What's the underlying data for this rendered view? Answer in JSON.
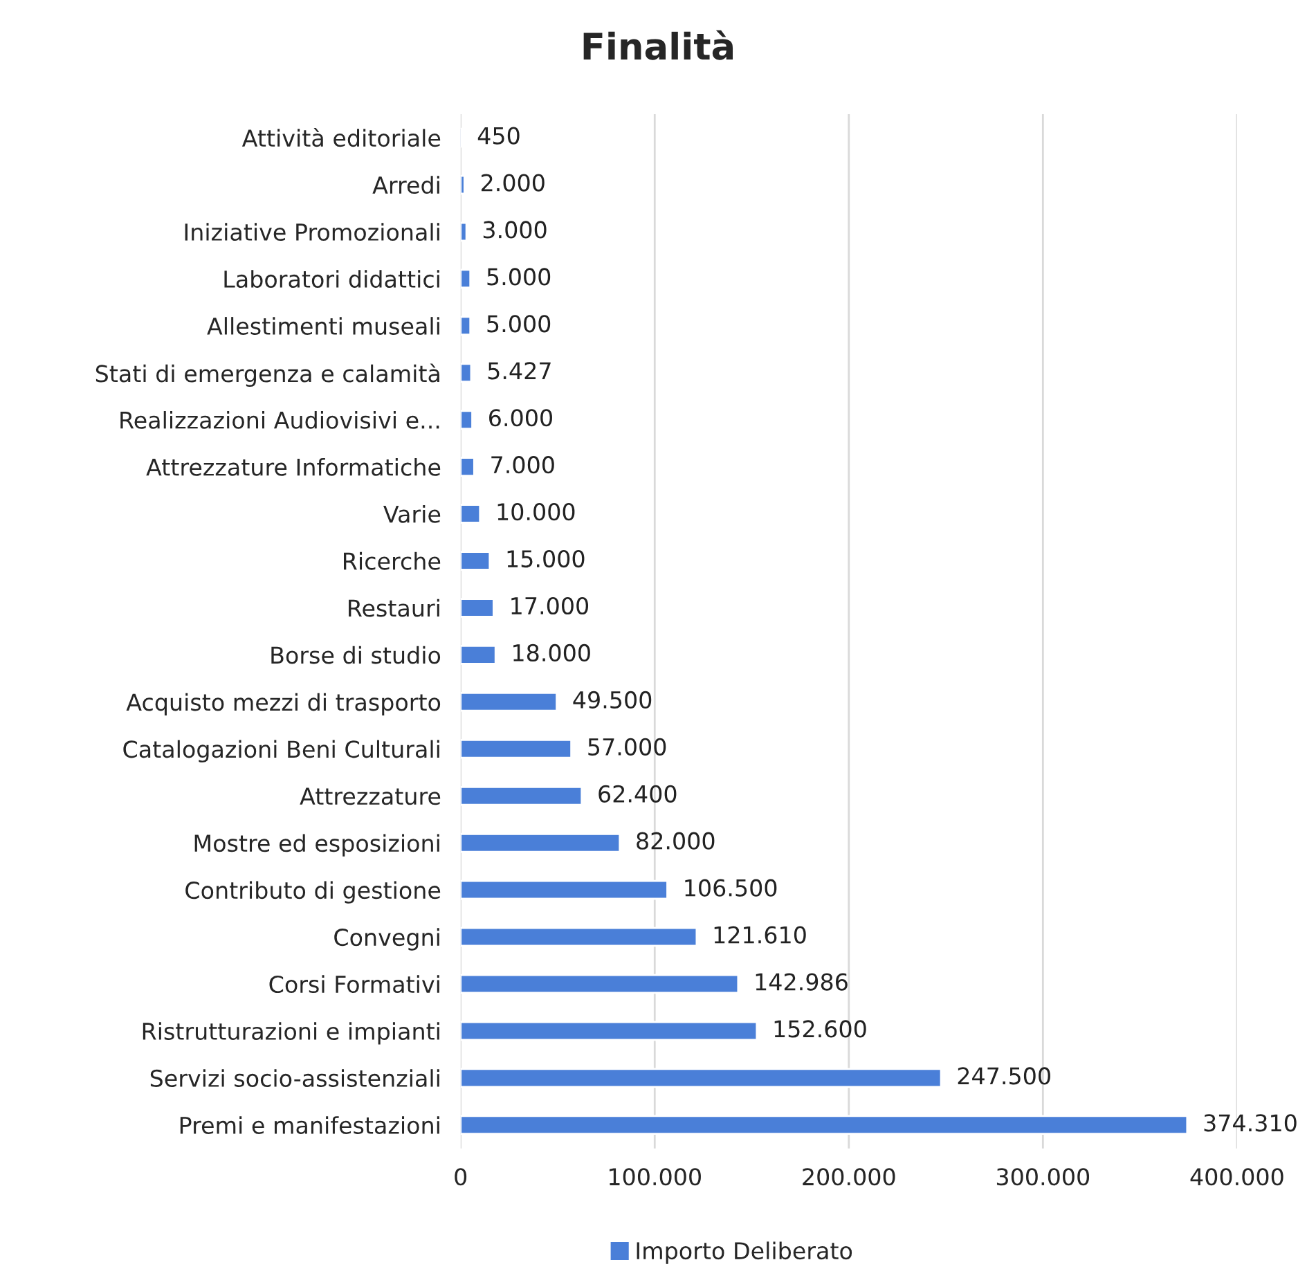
{
  "chart_data": {
    "type": "bar",
    "orientation": "horizontal",
    "title": "Finalità",
    "categories": [
      "Attività editoriale",
      "Arredi",
      "Iniziative Promozionali",
      "Laboratori didattici",
      "Allestimenti museali",
      "Stati di emergenza e calamità",
      "Realizzazioni Audiovisivi e...",
      "Attrezzature Informatiche",
      "Varie",
      "Ricerche",
      "Restauri",
      "Borse di studio",
      "Acquisto mezzi di trasporto",
      "Catalogazioni Beni Culturali",
      "Attrezzature",
      "Mostre ed esposizioni",
      "Contributo di gestione",
      "Convegni",
      "Corsi Formativi",
      "Ristrutturazioni e impianti",
      "Servizi socio-assistenziali",
      "Premi e manifestazioni"
    ],
    "series": [
      {
        "name": "Importo Deliberato",
        "color": "#4a7fd8",
        "values": [
          450,
          2000,
          3000,
          5000,
          5000,
          5427,
          6000,
          7000,
          10000,
          15000,
          17000,
          18000,
          49500,
          57000,
          62400,
          82000,
          106500,
          121610,
          142986,
          152600,
          247500,
          374310
        ],
        "value_labels": [
          "450",
          "2.000",
          "3.000",
          "5.000",
          "5.000",
          "5.427",
          "6.000",
          "7.000",
          "10.000",
          "15.000",
          "17.000",
          "18.000",
          "49.500",
          "57.000",
          "62.400",
          "82.000",
          "106.500",
          "121.610",
          "142.986",
          "152.600",
          "247.500",
          "374.310"
        ]
      }
    ],
    "xlim": [
      0,
      400000
    ],
    "xticks": [
      0,
      {
        "value": 100000,
        "label": "100.000"
      },
      {
        "value": 200000,
        "label": "200.000"
      },
      {
        "value": 300000,
        "label": "300.000"
      },
      {
        "value": 400000,
        "label": "400.000"
      }
    ],
    "grid": "x",
    "legend": "bottom"
  }
}
